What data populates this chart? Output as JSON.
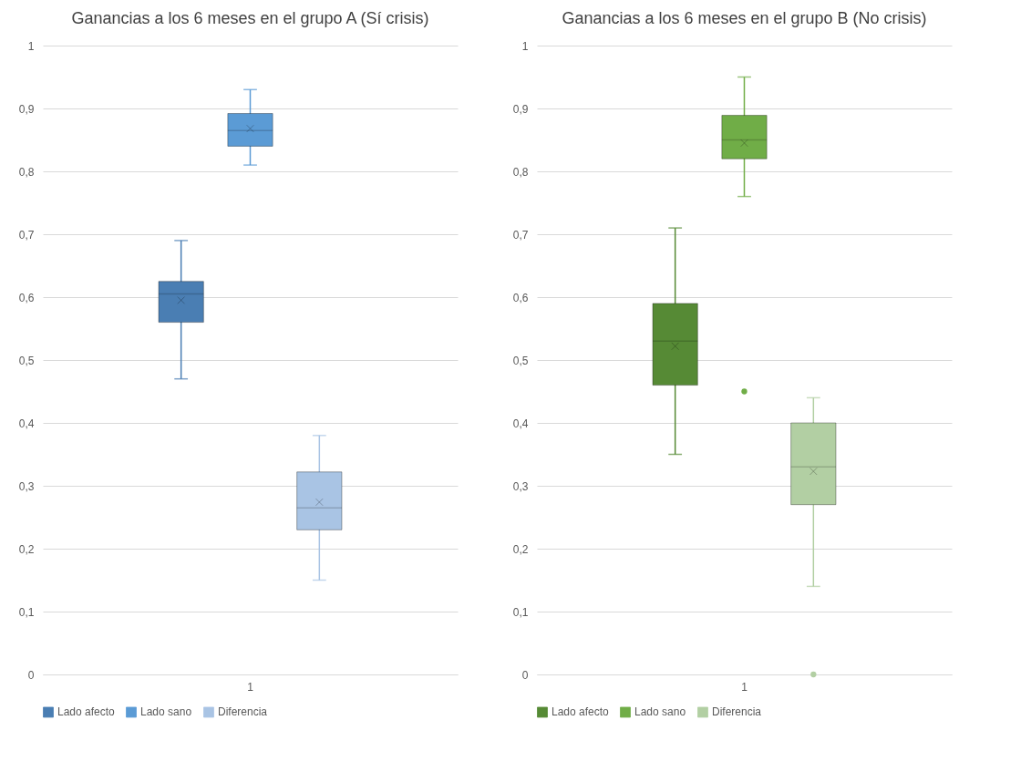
{
  "chart_data": [
    {
      "type": "box",
      "title": "Ganancias a los 6 meses en el grupo A (Sí crisis)",
      "categories": [
        "1"
      ],
      "ylim": [
        0,
        1
      ],
      "yticks": [
        {
          "value": 0,
          "label": "0"
        },
        {
          "value": 0.1,
          "label": "0,1"
        },
        {
          "value": 0.2,
          "label": "0,2"
        },
        {
          "value": 0.3,
          "label": "0,3"
        },
        {
          "value": 0.4,
          "label": "0,4"
        },
        {
          "value": 0.5,
          "label": "0,5"
        },
        {
          "value": 0.6,
          "label": "0,6"
        },
        {
          "value": 0.7,
          "label": "0,7"
        },
        {
          "value": 0.8,
          "label": "0,8"
        },
        {
          "value": 0.9,
          "label": "0,9"
        },
        {
          "value": 1,
          "label": "1"
        }
      ],
      "grid": "y",
      "legend": "bottom",
      "series": [
        {
          "name": "Lado afecto",
          "color": "#4a7eb3",
          "boxes": [
            {
              "low": 0.47,
              "q1": 0.56,
              "median": 0.605,
              "q3": 0.625,
              "high": 0.69,
              "mean": 0.595
            }
          ]
        },
        {
          "name": "Lado sano",
          "color": "#5b9bd5",
          "boxes": [
            {
              "low": 0.81,
              "q1": 0.84,
              "median": 0.865,
              "q3": 0.892,
              "high": 0.93,
              "mean": 0.868
            }
          ]
        },
        {
          "name": "Diferencia",
          "color": "#a9c4e4",
          "boxes": [
            {
              "low": 0.15,
              "q1": 0.23,
              "median": 0.265,
              "q3": 0.322,
              "high": 0.38,
              "mean": 0.274
            }
          ]
        }
      ]
    },
    {
      "type": "box",
      "title": "Ganancias a los 6 meses en el grupo B (No crisis)",
      "categories": [
        "1"
      ],
      "ylim": [
        0,
        1
      ],
      "yticks": [
        {
          "value": 0,
          "label": "0"
        },
        {
          "value": 0.1,
          "label": "0,1"
        },
        {
          "value": 0.2,
          "label": "0,2"
        },
        {
          "value": 0.3,
          "label": "0,3"
        },
        {
          "value": 0.4,
          "label": "0,4"
        },
        {
          "value": 0.5,
          "label": "0,5"
        },
        {
          "value": 0.6,
          "label": "0,6"
        },
        {
          "value": 0.7,
          "label": "0,7"
        },
        {
          "value": 0.8,
          "label": "0,8"
        },
        {
          "value": 0.9,
          "label": "0,9"
        },
        {
          "value": 1,
          "label": "1"
        }
      ],
      "grid": "y",
      "legend": "bottom",
      "series": [
        {
          "name": "Lado afecto",
          "color": "#568a35",
          "boxes": [
            {
              "low": 0.35,
              "q1": 0.46,
              "median": 0.53,
              "q3": 0.59,
              "high": 0.71,
              "mean": 0.522
            }
          ]
        },
        {
          "name": "Lado sano",
          "color": "#70ad47",
          "boxes": [
            {
              "low": 0.76,
              "q1": 0.82,
              "median": 0.85,
              "q3": 0.889,
              "high": 0.95,
              "mean": 0.845,
              "outliers": [
                0.45
              ]
            }
          ]
        },
        {
          "name": "Diferencia",
          "color": "#b2cfa3",
          "boxes": [
            {
              "low": 0.14,
              "q1": 0.27,
              "median": 0.33,
              "q3": 0.4,
              "high": 0.44,
              "mean": 0.323,
              "outliers": [
                0
              ]
            }
          ]
        }
      ]
    }
  ]
}
